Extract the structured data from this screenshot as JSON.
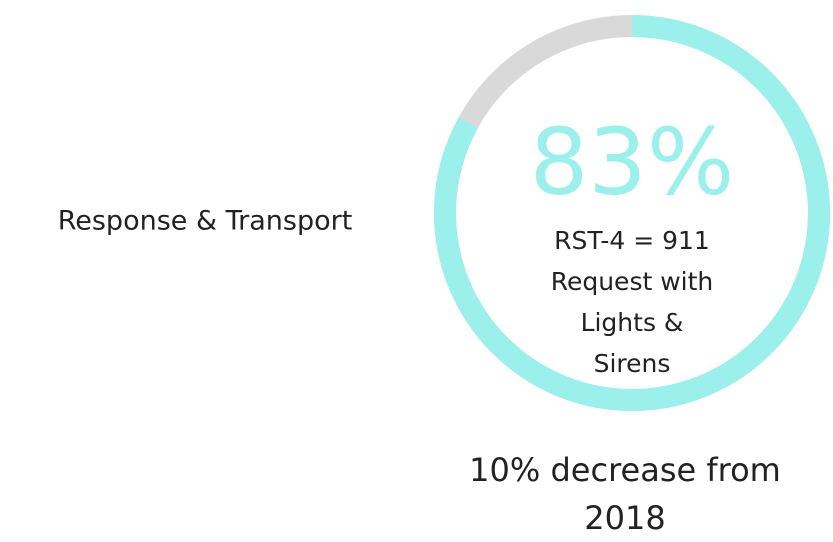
{
  "chart_data": {
    "type": "gauge",
    "title": "Response & Transport",
    "values": [
      83
    ],
    "value_labels": [
      "83%"
    ],
    "ylim": [
      0,
      100
    ],
    "color": "#9cf0ec",
    "track_color": "#d9d9d9",
    "center_lines": [
      "RST-4 = 911",
      "Request with",
      "Lights &",
      "Sirens"
    ],
    "footer_lines": [
      "10% decrease from",
      "2018"
    ]
  }
}
